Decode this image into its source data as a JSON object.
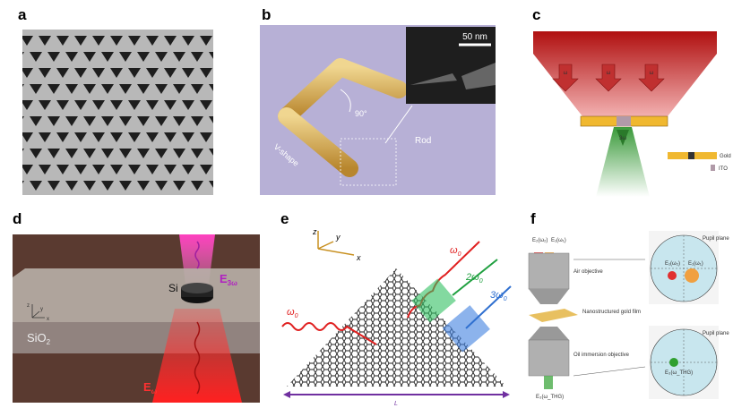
{
  "panels": [
    {
      "label": "a"
    },
    {
      "label": "b"
    },
    {
      "label": "c"
    },
    {
      "label": "d"
    },
    {
      "label": "e"
    },
    {
      "label": "f"
    }
  ],
  "b": {
    "scale": "50 nm",
    "angle": "90°",
    "rod": "Rod",
    "vshape": "V-shape"
  },
  "c": {
    "beam": [
      "ω",
      "ω",
      "ω"
    ],
    "harmonic": "3ω",
    "legend": [
      "Gold",
      "ITO"
    ]
  },
  "d": {
    "si": "Si",
    "substrate": {
      "base": "SiO",
      "sub": "2"
    },
    "third": {
      "base": "E",
      "sub": "3ω"
    },
    "fundamental": {
      "base": "E",
      "sub": "ω"
    },
    "axes": [
      "z",
      "y",
      "x"
    ]
  },
  "e": {
    "axes": [
      "z",
      "y",
      "x"
    ],
    "waves": [
      {
        "base": "ω",
        "sub": "0"
      },
      {
        "base": "ω",
        "sub": "0"
      },
      {
        "base": "2ω",
        "sub": "0"
      },
      {
        "base": "3ω",
        "sub": "0"
      }
    ],
    "length": "L"
  },
  "f": {
    "inputs": [
      "E₂(ω₂)",
      "E₁(ω₁)"
    ],
    "air": "Air objective",
    "film": "Nanostructured gold film",
    "oil": "Oil immersion objective",
    "output": "E₃(ω_THG)",
    "pupil": [
      "Pupil plane",
      "Pupil plane"
    ],
    "spots": [
      "E₁(ω₂)",
      "E₁(ω₁)",
      "E₃(ω_THG)"
    ]
  }
}
